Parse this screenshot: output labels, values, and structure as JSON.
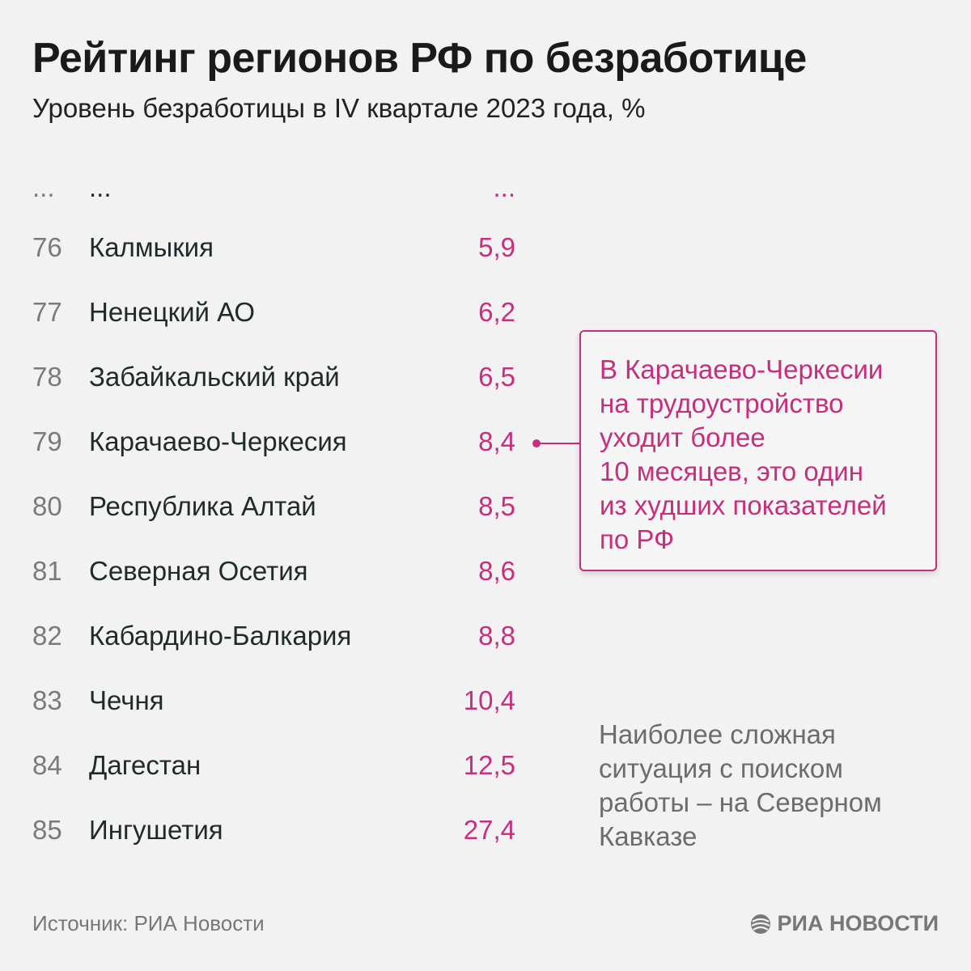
{
  "title": "Рейтинг регионов РФ по безработице",
  "subtitle": "Уровень безработицы в IV квартале 2023 года, %",
  "chart_data": {
    "type": "table",
    "title": "Рейтинг регионов РФ по безработице",
    "subtitle": "Уровень безработицы в IV квартале 2023 года, %",
    "rows": [
      {
        "rank": "...",
        "region": "...",
        "value": "..."
      },
      {
        "rank": "76",
        "region": "Калмыкия",
        "value": "5,9"
      },
      {
        "rank": "77",
        "region": "Ненецкий АО",
        "value": "6,2"
      },
      {
        "rank": "78",
        "region": "Забайкальский край",
        "value": "6,5"
      },
      {
        "rank": "79",
        "region": "Карачаево-Черкесия",
        "value": "8,4"
      },
      {
        "rank": "80",
        "region": "Республика Алтай",
        "value": "8,5"
      },
      {
        "rank": "81",
        "region": "Северная Осетия",
        "value": "8,6"
      },
      {
        "rank": "82",
        "region": "Кабардино-Балкария",
        "value": "8,8"
      },
      {
        "rank": "83",
        "region": "Чечня",
        "value": "10,4"
      },
      {
        "rank": "84",
        "region": "Дагестан",
        "value": "12,5"
      },
      {
        "rank": "85",
        "region": "Ингушетия",
        "value": "27,4"
      }
    ],
    "annotations": [
      {
        "target_region": "Карачаево-Черкесия",
        "lines": [
          "В Карачаево-Черкесии",
          "на трудоустройство",
          "уходит более",
          "10 месяцев, это один",
          "из худших показателей",
          "по РФ"
        ]
      }
    ],
    "note_lines": [
      "Наиболее сложная",
      "ситуация с поиском",
      "работы – на Северном",
      "Кавказе"
    ]
  },
  "footer": {
    "source": "Источник: РИА Новости",
    "logo_text": "РИА НОВОСТИ"
  },
  "colors": {
    "accent": "#c62f7c",
    "background": "#f2f2f2",
    "rank": "#7a7a7a",
    "text": "#1f2a2a",
    "muted": "#6c6c6c"
  },
  "icons": {
    "logo": "ria-novosti-logo-icon"
  }
}
